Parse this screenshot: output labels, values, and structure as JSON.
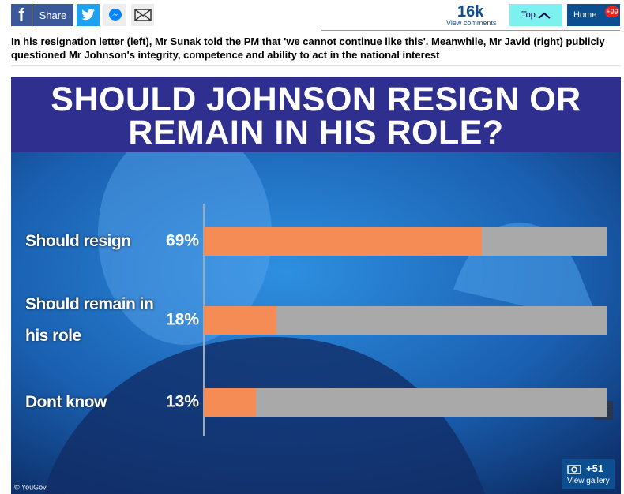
{
  "toolbar": {
    "share": "Share",
    "comments_count": "16k",
    "comments_label": "View comments",
    "top": "Top",
    "home": "Home",
    "badge": "+99"
  },
  "caption": "In his resignation letter (left), Mr Sunak told the PM that 'we cannot continue like this'. Meanwhile, Mr Javid (right) publicly questioned Mr Johnson's integrity, competence and ability to act in the national interest",
  "chart_data": {
    "type": "bar",
    "orientation": "horizontal",
    "title": "SHOULD JOHNSON RESIGN OR REMAIN IN HIS ROLE?",
    "categories": [
      "Should resign",
      "Should remain in his role",
      "Dont know"
    ],
    "values": [
      69,
      18,
      13
    ],
    "value_labels": [
      "69%",
      "18%",
      "13%"
    ],
    "color": "#f58b55",
    "track_color": "#a9a9a9",
    "xlim": [
      0,
      100
    ]
  },
  "credit": "© YouGov",
  "gallery": {
    "count": "+51",
    "label": "View gallery"
  }
}
